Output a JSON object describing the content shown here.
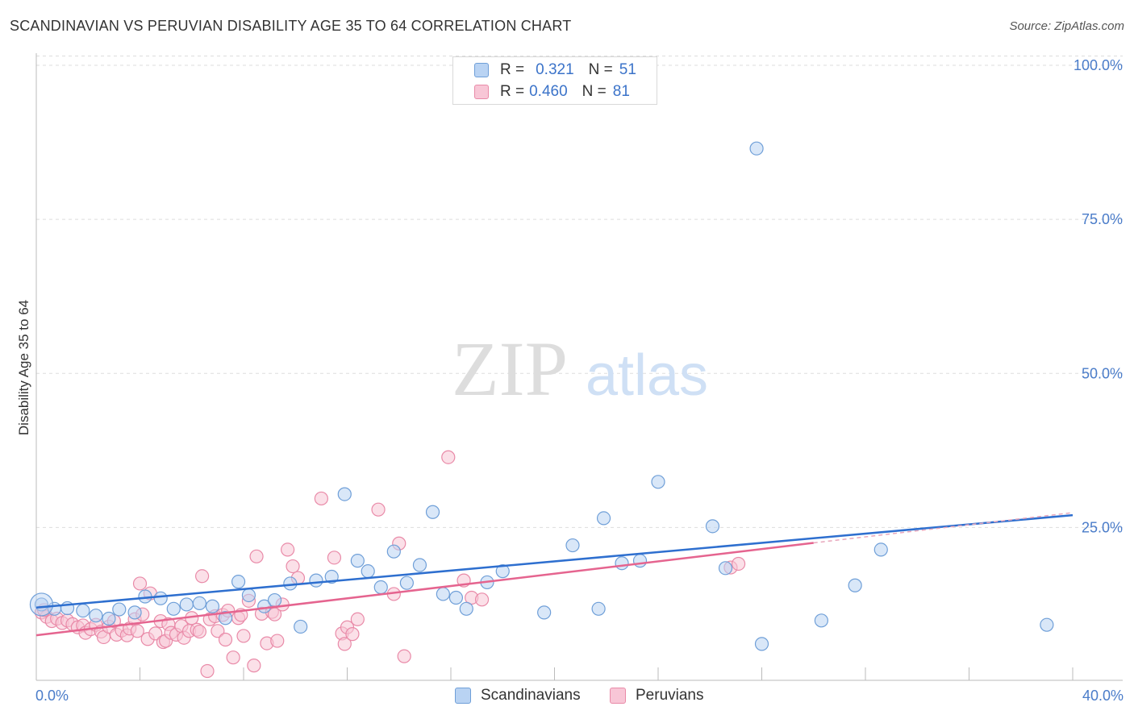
{
  "title": "SCANDINAVIAN VS PERUVIAN DISABILITY AGE 35 TO 64 CORRELATION CHART",
  "source": "Source: ZipAtlas.com",
  "watermark": {
    "zip": "ZIP",
    "atlas": "atlas"
  },
  "legend": {
    "rows": [
      {
        "r_label": "R =",
        "r_value": "0.321",
        "n_label": "N =",
        "n_value": "51"
      },
      {
        "r_label": "R =",
        "r_value": "0.460",
        "n_label": "N =",
        "n_value": "81"
      }
    ]
  },
  "bottom_legend": {
    "scandinavians": "Scandinavians",
    "peruvians": "Peruvians"
  },
  "colors": {
    "scandinavian_fill": "#b9d3f3",
    "scandinavian_stroke": "#6f9fd8",
    "scandinavian_line": "#2e6fcf",
    "peruvian_fill": "#f8c6d6",
    "peruvian_stroke": "#e98aa8",
    "peruvian_line": "#e5648f",
    "tick_text": "#4a7cc9",
    "grid": "#dddddd"
  },
  "chart_data": {
    "type": "scatter",
    "title": "SCANDINAVIAN VS PERUVIAN DISABILITY AGE 35 TO 64 CORRELATION CHART",
    "xlabel": "",
    "ylabel": "Disability Age 35 to 64",
    "xlim": [
      0,
      40
    ],
    "ylim": [
      0,
      105
    ],
    "x_tick_labels": [
      "0.0%",
      "40.0%"
    ],
    "y_ticks": [
      25,
      50,
      75,
      100
    ],
    "y_tick_labels": [
      "25.0%",
      "50.0%",
      "75.0%",
      "100.0%"
    ],
    "grid": true,
    "legend_position": "top-center",
    "series": [
      {
        "name": "Scandinavians",
        "r": 0.321,
        "n": 51,
        "trend": {
          "x0": 0,
          "y0": 12.0,
          "x1": 40,
          "y1": 27.0,
          "dashed_to": 40.0,
          "dashed_y": 27.4
        },
        "points": [
          [
            0.2,
            12.5
          ],
          [
            0.7,
            11.8
          ],
          [
            1.2,
            11.9
          ],
          [
            1.8,
            11.5
          ],
          [
            2.3,
            10.7
          ],
          [
            2.8,
            10.2
          ],
          [
            3.2,
            11.7
          ],
          [
            3.8,
            11.2
          ],
          [
            4.2,
            13.8
          ],
          [
            4.8,
            13.5
          ],
          [
            5.3,
            11.8
          ],
          [
            5.8,
            12.5
          ],
          [
            6.3,
            12.7
          ],
          [
            6.8,
            12.2
          ],
          [
            7.3,
            10.3
          ],
          [
            7.8,
            16.2
          ],
          [
            8.2,
            14.0
          ],
          [
            8.8,
            12.2
          ],
          [
            9.2,
            13.2
          ],
          [
            9.8,
            15.9
          ],
          [
            10.2,
            8.9
          ],
          [
            10.8,
            16.4
          ],
          [
            11.4,
            17.0
          ],
          [
            11.9,
            30.4
          ],
          [
            12.4,
            19.6
          ],
          [
            12.8,
            17.9
          ],
          [
            13.3,
            15.3
          ],
          [
            13.8,
            21.1
          ],
          [
            14.3,
            16.0
          ],
          [
            14.8,
            18.9
          ],
          [
            15.3,
            27.5
          ],
          [
            15.7,
            14.2
          ],
          [
            16.2,
            13.6
          ],
          [
            16.6,
            11.8
          ],
          [
            17.4,
            16.1
          ],
          [
            18.0,
            17.9
          ],
          [
            19.6,
            11.2
          ],
          [
            20.7,
            22.1
          ],
          [
            21.7,
            11.8
          ],
          [
            21.9,
            26.5
          ],
          [
            22.6,
            19.2
          ],
          [
            23.3,
            19.6
          ],
          [
            24.0,
            32.4
          ],
          [
            26.1,
            25.2
          ],
          [
            26.6,
            18.4
          ],
          [
            27.8,
            86.5
          ],
          [
            28.0,
            6.1
          ],
          [
            30.3,
            9.9
          ],
          [
            31.6,
            15.6
          ],
          [
            32.6,
            21.4
          ],
          [
            39.0,
            9.2
          ]
        ]
      },
      {
        "name": "Peruvians",
        "r": 0.46,
        "n": 81,
        "trend": {
          "x0": 0,
          "y0": 7.5,
          "x1": 30.0,
          "y1": 22.5
        },
        "points": [
          [
            0.2,
            11.2
          ],
          [
            0.4,
            10.5
          ],
          [
            0.6,
            9.8
          ],
          [
            0.8,
            10.2
          ],
          [
            1.0,
            9.5
          ],
          [
            1.2,
            9.9
          ],
          [
            1.4,
            9.3
          ],
          [
            1.6,
            8.8
          ],
          [
            1.8,
            9.1
          ],
          [
            1.9,
            7.9
          ],
          [
            2.1,
            8.5
          ],
          [
            2.3,
            9.2
          ],
          [
            2.5,
            8.1
          ],
          [
            2.6,
            7.2
          ],
          [
            2.8,
            8.9
          ],
          [
            3.0,
            9.8
          ],
          [
            3.1,
            7.6
          ],
          [
            3.3,
            8.3
          ],
          [
            3.5,
            7.5
          ],
          [
            3.6,
            8.6
          ],
          [
            3.8,
            10.1
          ],
          [
            3.9,
            8.2
          ],
          [
            4.0,
            15.9
          ],
          [
            4.1,
            10.9
          ],
          [
            4.3,
            6.9
          ],
          [
            4.4,
            14.3
          ],
          [
            4.6,
            7.8
          ],
          [
            4.8,
            9.8
          ],
          [
            4.9,
            6.4
          ],
          [
            5.0,
            6.6
          ],
          [
            5.1,
            9.3
          ],
          [
            5.2,
            7.9
          ],
          [
            5.4,
            7.6
          ],
          [
            5.6,
            9.0
          ],
          [
            5.7,
            7.1
          ],
          [
            5.9,
            8.2
          ],
          [
            6.0,
            10.3
          ],
          [
            6.2,
            8.4
          ],
          [
            6.3,
            8.1
          ],
          [
            6.4,
            17.1
          ],
          [
            6.6,
            1.7
          ],
          [
            6.7,
            10.1
          ],
          [
            6.9,
            10.6
          ],
          [
            7.0,
            8.2
          ],
          [
            7.2,
            10.8
          ],
          [
            7.3,
            6.8
          ],
          [
            7.4,
            11.5
          ],
          [
            7.6,
            3.9
          ],
          [
            7.8,
            10.3
          ],
          [
            7.9,
            10.8
          ],
          [
            8.0,
            7.4
          ],
          [
            8.2,
            13.1
          ],
          [
            8.4,
            2.6
          ],
          [
            8.5,
            20.3
          ],
          [
            8.7,
            11.0
          ],
          [
            8.9,
            6.2
          ],
          [
            9.1,
            11.3
          ],
          [
            9.2,
            10.9
          ],
          [
            9.3,
            6.6
          ],
          [
            9.5,
            12.5
          ],
          [
            9.7,
            21.4
          ],
          [
            9.9,
            18.7
          ],
          [
            10.1,
            16.8
          ],
          [
            11.0,
            29.7
          ],
          [
            11.5,
            20.1
          ],
          [
            11.8,
            7.8
          ],
          [
            11.9,
            6.1
          ],
          [
            12.0,
            8.8
          ],
          [
            12.2,
            7.7
          ],
          [
            12.4,
            10.1
          ],
          [
            13.2,
            27.9
          ],
          [
            13.8,
            14.2
          ],
          [
            14.0,
            22.4
          ],
          [
            14.2,
            4.1
          ],
          [
            15.9,
            36.4
          ],
          [
            16.5,
            16.4
          ],
          [
            16.8,
            13.6
          ],
          [
            17.2,
            13.3
          ],
          [
            26.8,
            18.5
          ],
          [
            27.1,
            19.1
          ],
          [
            0.3,
            11.6
          ]
        ]
      }
    ]
  }
}
